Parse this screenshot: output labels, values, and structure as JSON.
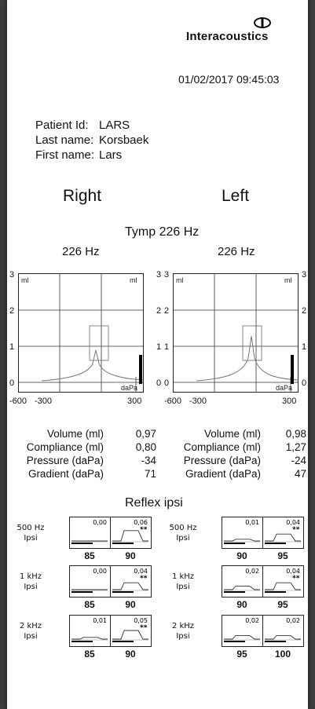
{
  "brand": {
    "name": "Interacoustics",
    "logo_icon": "interacoustics-logo-icon"
  },
  "datetime": "01/02/2017  09:45:03",
  "patient": [
    {
      "label": "Patient Id:",
      "value": "LARS"
    },
    {
      "label": "Last name:",
      "value": "Korsbaek"
    },
    {
      "label": "First name:",
      "value": "Lars"
    }
  ],
  "sides": {
    "right": "Right",
    "left": "Left"
  },
  "tymp": {
    "title": "Tymp 226 Hz",
    "right_freq": "226 Hz",
    "left_freq": "226 Hz",
    "unit_ml": "ml",
    "unit_dapa": "daPa",
    "y_ticks": [
      "3",
      "2",
      "1",
      "0"
    ],
    "x_ticks": [
      "-600",
      "-300",
      "300"
    ]
  },
  "chart_data": [
    {
      "type": "line",
      "title": "226 Hz",
      "side": "Right",
      "xlabel": "daPa",
      "ylabel": "ml",
      "xlim": [
        -600,
        400
      ],
      "ylim": [
        -0.3,
        3
      ],
      "peak": {
        "pressure_dapa": -34,
        "compliance_ml": 0.8
      },
      "volume_ml": 0.97
    },
    {
      "type": "line",
      "title": "226 Hz",
      "side": "Left",
      "xlabel": "daPa",
      "ylabel": "ml",
      "xlim": [
        -600,
        400
      ],
      "ylim": [
        -0.3,
        3
      ],
      "peak": {
        "pressure_dapa": -24,
        "compliance_ml": 1.27
      },
      "volume_ml": 0.98
    }
  ],
  "measurements": {
    "labels": [
      "Volume (ml)",
      "Compliance (ml)",
      "Pressure (daPa)",
      "Gradient (daPa)"
    ],
    "right": [
      "0,97",
      "0,80",
      "-34",
      "71"
    ],
    "left": [
      "0,98",
      "1,27",
      "-24",
      "47"
    ]
  },
  "reflex": {
    "title": "Reflex ipsi",
    "right": [
      {
        "freq": "500 Hz",
        "mode": "Ipsi",
        "boxes": [
          {
            "value": "0,00",
            "level": "85",
            "stars": ""
          },
          {
            "value": "0,06",
            "level": "90",
            "stars": "**"
          }
        ]
      },
      {
        "freq": "1 kHz",
        "mode": "Ipsi",
        "boxes": [
          {
            "value": "0,00",
            "level": "85",
            "stars": ""
          },
          {
            "value": "0,04",
            "level": "90",
            "stars": "**"
          }
        ]
      },
      {
        "freq": "2 kHz",
        "mode": "Ipsi",
        "boxes": [
          {
            "value": "0,01",
            "level": "85",
            "stars": ""
          },
          {
            "value": "0,05",
            "level": "90",
            "stars": "**"
          }
        ]
      }
    ],
    "left": [
      {
        "freq": "500 Hz",
        "mode": "Ipsi",
        "boxes": [
          {
            "value": "0,01",
            "level": "90",
            "stars": ""
          },
          {
            "value": "0,04",
            "level": "95",
            "stars": "**"
          }
        ]
      },
      {
        "freq": "1 kHz",
        "mode": "Ipsi",
        "boxes": [
          {
            "value": "0,02",
            "level": "90",
            "stars": ""
          },
          {
            "value": "0,04",
            "level": "95",
            "stars": "**"
          }
        ]
      },
      {
        "freq": "2 kHz",
        "mode": "Ipsi",
        "boxes": [
          {
            "value": "0,02",
            "level": "95",
            "stars": ""
          },
          {
            "value": "0,02",
            "level": "100",
            "stars": ""
          }
        ]
      }
    ]
  }
}
